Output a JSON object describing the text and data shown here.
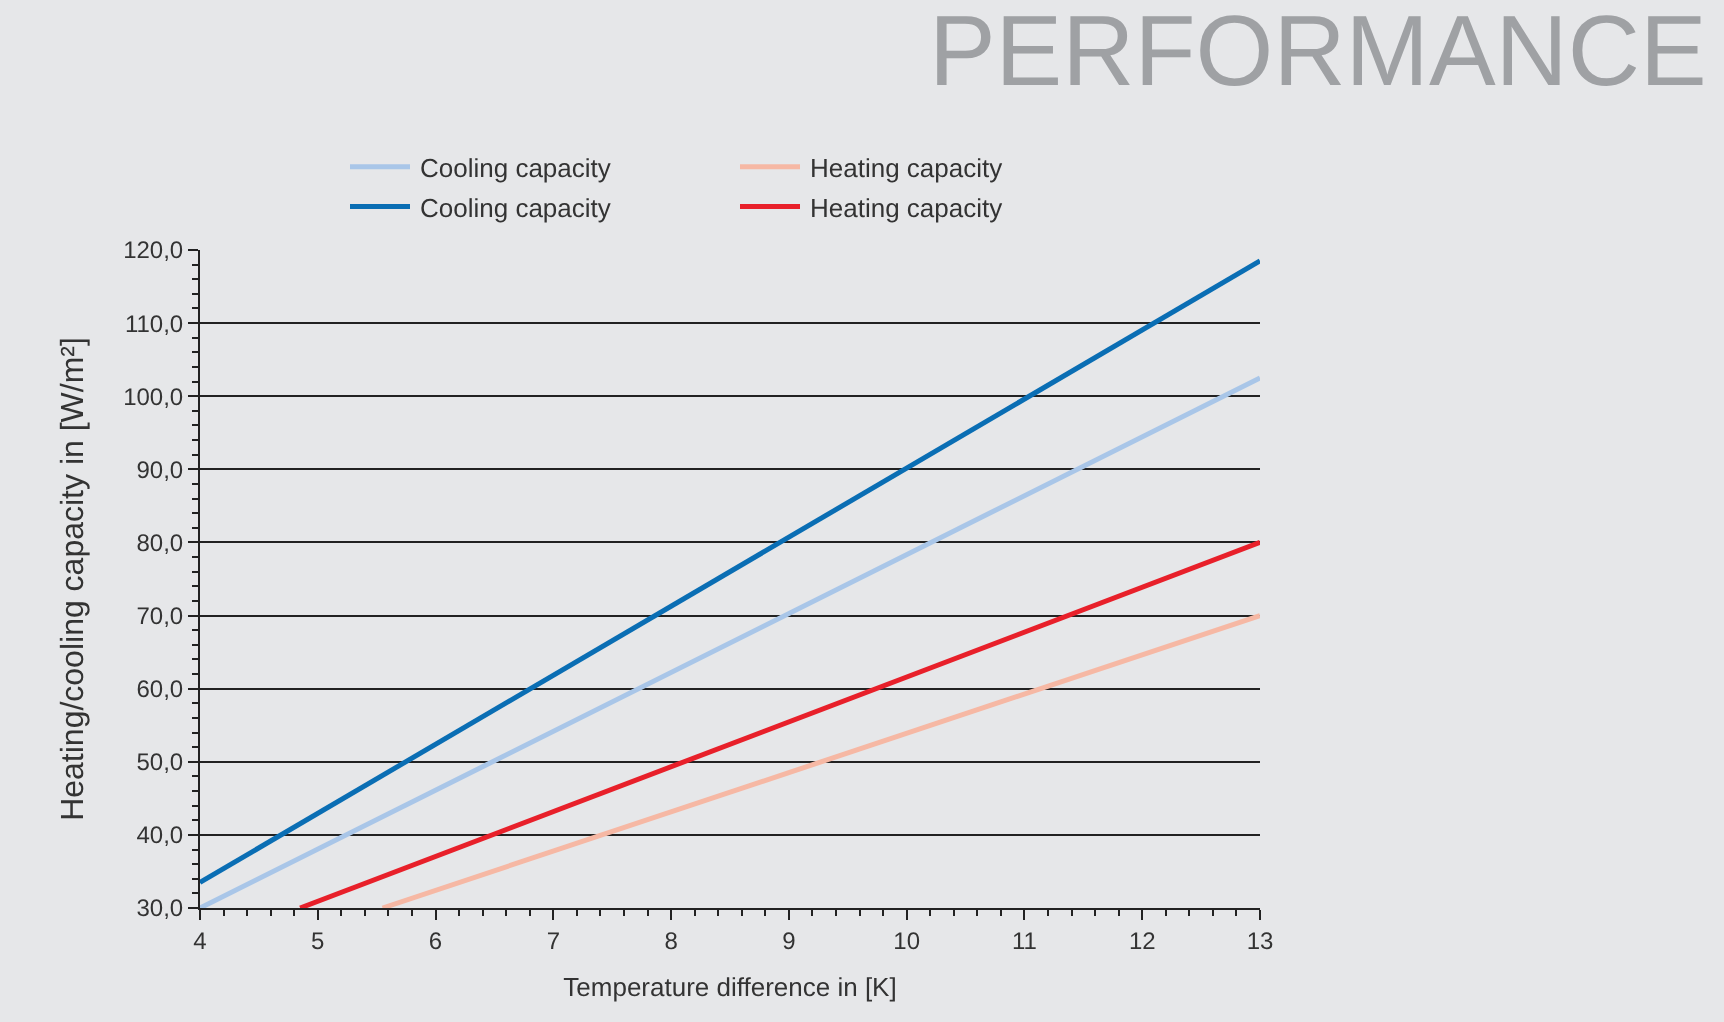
{
  "chart_data": {
    "type": "line",
    "title": "PERFORMANCE",
    "xlabel": "Temperature difference in [K]",
    "ylabel": "Heating/cooling capacity in [W/m²]",
    "series": [
      {
        "name": "Cooling capacity",
        "color": "#a9c6e8",
        "x": [
          4,
          13
        ],
        "values": [
          30,
          102.5
        ]
      },
      {
        "name": "Heating capacity",
        "color": "#f6b8a4",
        "x": [
          5.55,
          13
        ],
        "values": [
          30,
          70
        ]
      },
      {
        "name": "Cooling capacity",
        "color": "#0a6eb4",
        "x": [
          4,
          13
        ],
        "values": [
          33.5,
          118.5
        ]
      },
      {
        "name": "Heating capacity",
        "color": "#e8202a",
        "x": [
          4.85,
          13
        ],
        "values": [
          30,
          80
        ]
      }
    ],
    "xlim": [
      4,
      13
    ],
    "xticks": [
      4,
      5,
      6,
      7,
      8,
      9,
      10,
      11,
      12,
      13
    ],
    "ylim": [
      30,
      120
    ],
    "yticks": [
      {
        "value": 30,
        "label": "30,0"
      },
      {
        "value": 40,
        "label": "40,0"
      },
      {
        "value": 50,
        "label": "50,0"
      },
      {
        "value": 60,
        "label": "60,0"
      },
      {
        "value": 70,
        "label": "70,0"
      },
      {
        "value": 80,
        "label": "80,0"
      },
      {
        "value": 90,
        "label": "90,0"
      },
      {
        "value": 100,
        "label": "100,0"
      },
      {
        "value": 110,
        "label": "110,0"
      },
      {
        "value": 120,
        "label": "120,0"
      }
    ],
    "grid": "y",
    "legend": "top",
    "marker": "none",
    "line_style": "solid"
  }
}
